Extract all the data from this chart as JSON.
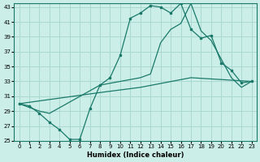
{
  "xlabel": "Humidex (Indice chaleur)",
  "bg_color": "#cceee8",
  "grid_color": "#aad8d0",
  "line_color": "#1a7a6a",
  "xlim": [
    -0.5,
    23.5
  ],
  "ylim": [
    25,
    43.5
  ],
  "xticks": [
    0,
    1,
    2,
    3,
    4,
    5,
    6,
    7,
    8,
    9,
    10,
    11,
    12,
    13,
    14,
    15,
    16,
    17,
    18,
    19,
    20,
    21,
    22,
    23
  ],
  "yticks": [
    25,
    27,
    29,
    31,
    33,
    35,
    37,
    39,
    41,
    43
  ],
  "curve_main_x": [
    0,
    1,
    2,
    3,
    4,
    5,
    6,
    7,
    8,
    9,
    10,
    11,
    12,
    13,
    14,
    15,
    16,
    17,
    18,
    19,
    20,
    21,
    22,
    23
  ],
  "curve_main_y": [
    30.0,
    29.7,
    28.7,
    27.5,
    26.5,
    25.2,
    25.2,
    29.3,
    32.5,
    33.5,
    36.5,
    41.5,
    42.2,
    43.2,
    43.0,
    42.2,
    43.5,
    40.0,
    38.8,
    39.2,
    35.5,
    34.5,
    32.8,
    33.0
  ],
  "curve_upper_x": [
    0,
    2,
    3,
    8,
    12,
    13,
    14,
    15,
    16,
    17,
    18,
    19,
    20,
    21,
    22,
    23
  ],
  "curve_upper_y": [
    30.0,
    29.0,
    28.7,
    32.5,
    33.5,
    34.0,
    38.2,
    40.0,
    40.8,
    43.5,
    39.8,
    38.5,
    36.0,
    33.5,
    32.2,
    33.0
  ],
  "curve_diag_x": [
    0,
    8,
    12,
    17,
    23
  ],
  "curve_diag_y": [
    30.0,
    31.5,
    32.2,
    33.5,
    33.0
  ]
}
